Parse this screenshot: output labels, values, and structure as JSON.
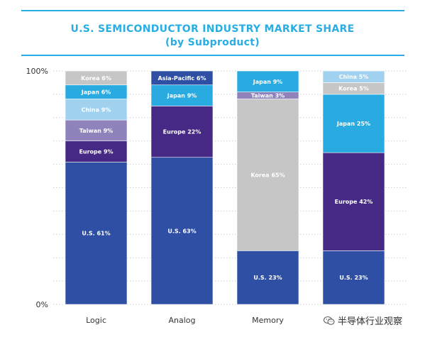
{
  "header": {
    "title": "U.S. SEMICONDUCTOR INDUSTRY MARKET SHARE",
    "subtitle": "(by Subproduct)"
  },
  "watermark": {
    "text": "半导体行业观察",
    "icon": "wechat-icon"
  },
  "colors": {
    "U.S.": "#2e4fa3",
    "Europe": "#452984",
    "Taiwan": "#9083bb",
    "China": "#a0d2ef",
    "Japan": "#29abe2",
    "Korea": "#c6c6c6",
    "Korea (Memory)": "#c6c6c6",
    "Asia-Pacific": "#2e4fa3",
    "gridline": "#cfcfcf",
    "axis": "#333333"
  },
  "chart_data": {
    "type": "bar",
    "stacked": true,
    "title": "U.S. SEMICONDUCTOR INDUSTRY MARKET SHARE",
    "subtitle": "(by Subproduct)",
    "categories": [
      "Logic",
      "Analog",
      "Memory",
      "Discrete"
    ],
    "ytick_labels": [
      "100%",
      "0%"
    ],
    "ylim": [
      0,
      100
    ],
    "grid": true,
    "bars": [
      {
        "category": "Logic",
        "segments": [
          {
            "name": "U.S.",
            "value": 61,
            "label": "U.S. 61%"
          },
          {
            "name": "Europe",
            "value": 9,
            "label": "Europe 9%"
          },
          {
            "name": "Taiwan",
            "value": 9,
            "label": "Taiwan 9%"
          },
          {
            "name": "China",
            "value": 9,
            "label": "China 9%"
          },
          {
            "name": "Japan",
            "value": 6,
            "label": "Japan 6%"
          },
          {
            "name": "Korea",
            "value": 6,
            "label": "Korea 6%"
          }
        ]
      },
      {
        "category": "Analog",
        "segments": [
          {
            "name": "U.S.",
            "value": 63,
            "label": "U.S. 63%"
          },
          {
            "name": "Europe",
            "value": 22,
            "label": "Europe 22%"
          },
          {
            "name": "Japan",
            "value": 9,
            "label": "Japan 9%"
          },
          {
            "name": "Asia-Pacific",
            "value": 6,
            "label": "Asia-Pacific 6%"
          }
        ]
      },
      {
        "category": "Memory",
        "segments": [
          {
            "name": "U.S.",
            "value": 23,
            "label": "U.S. 23%"
          },
          {
            "name": "Korea",
            "value": 65,
            "label": "Korea 65%"
          },
          {
            "name": "Taiwan",
            "value": 3,
            "label": "Taiwan 3%"
          },
          {
            "name": "Japan",
            "value": 9,
            "label": "Japan 9%"
          }
        ]
      },
      {
        "category": "Discrete",
        "segments": [
          {
            "name": "U.S.",
            "value": 23,
            "label": "U.S. 23%"
          },
          {
            "name": "Europe",
            "value": 42,
            "label": "Europe 42%"
          },
          {
            "name": "Japan",
            "value": 25,
            "label": "Japan 25%"
          },
          {
            "name": "Korea",
            "value": 5,
            "label": "Korea 5%"
          },
          {
            "name": "China",
            "value": 5,
            "label": "China 5%"
          }
        ]
      }
    ]
  }
}
